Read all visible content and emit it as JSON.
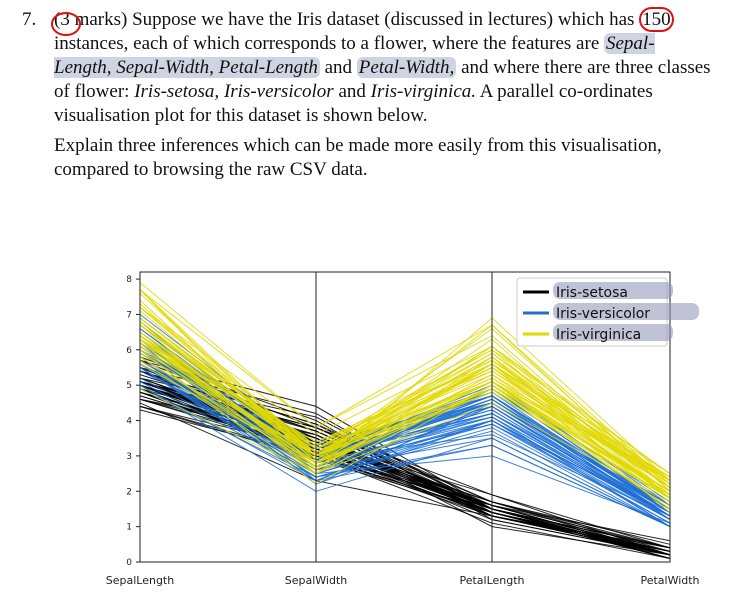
{
  "question": {
    "number": "7.",
    "marks": "(3 marks)",
    "text_a": " Suppose we have the Iris dataset (discussed in lectures) which has ",
    "count": "150",
    "text_b": " instances, each of which corresponds to a flower, where the features are ",
    "f1": "Sepal-Length, Sepal-Width, Petal-Length",
    "and1": " and ",
    "f2": "Petal-Width,",
    "text_c": " and where there are three classes of flower: ",
    "c1": "Iris-setosa,",
    "sp1": " ",
    "c2": "Iris-versicolor",
    "and2": " and ",
    "c3": "Iris-virginica.",
    "text_d": " A parallel co-ordinates visualisation plot for this dataset is shown below.",
    "instruction": "Explain three inferences which can be made more easily from this visualisation, compared to browsing the raw CSV data."
  },
  "colors": {
    "setosa": "#000000",
    "versicolor": "#1f6fd6",
    "virginica": "#e0d800",
    "highlight": "#8a91b3",
    "annotation": "#dd1111"
  },
  "chart_data": {
    "type": "parallel_coordinates",
    "axes": [
      "SepalLength",
      "SepalWidth",
      "PetalLength",
      "PetalWidth"
    ],
    "ylim": [
      0,
      8.2
    ],
    "yticks": [
      0,
      1,
      2,
      3,
      4,
      5,
      6,
      7,
      8
    ],
    "grid": false,
    "legend_position": "top-right",
    "series": [
      {
        "name": "Iris-setosa",
        "color": "#000000",
        "rows": [
          [
            5.1,
            3.5,
            1.4,
            0.2
          ],
          [
            4.9,
            3.0,
            1.4,
            0.2
          ],
          [
            4.7,
            3.2,
            1.3,
            0.2
          ],
          [
            4.6,
            3.1,
            1.5,
            0.2
          ],
          [
            5.0,
            3.6,
            1.4,
            0.2
          ],
          [
            5.4,
            3.9,
            1.7,
            0.4
          ],
          [
            4.6,
            3.4,
            1.4,
            0.3
          ],
          [
            5.0,
            3.4,
            1.5,
            0.2
          ],
          [
            4.4,
            2.9,
            1.4,
            0.2
          ],
          [
            4.9,
            3.1,
            1.5,
            0.1
          ],
          [
            5.4,
            3.7,
            1.5,
            0.2
          ],
          [
            4.8,
            3.4,
            1.6,
            0.2
          ],
          [
            4.8,
            3.0,
            1.4,
            0.1
          ],
          [
            4.3,
            3.0,
            1.1,
            0.1
          ],
          [
            5.8,
            4.0,
            1.2,
            0.2
          ],
          [
            5.7,
            4.4,
            1.5,
            0.4
          ],
          [
            5.4,
            3.9,
            1.3,
            0.4
          ],
          [
            5.1,
            3.5,
            1.4,
            0.3
          ],
          [
            5.7,
            3.8,
            1.7,
            0.3
          ],
          [
            5.1,
            3.8,
            1.5,
            0.3
          ],
          [
            5.4,
            3.4,
            1.7,
            0.2
          ],
          [
            5.1,
            3.7,
            1.5,
            0.4
          ],
          [
            4.6,
            3.6,
            1.0,
            0.2
          ],
          [
            5.1,
            3.3,
            1.7,
            0.5
          ],
          [
            4.8,
            3.4,
            1.9,
            0.2
          ],
          [
            5.0,
            3.0,
            1.6,
            0.2
          ],
          [
            5.0,
            3.4,
            1.6,
            0.4
          ],
          [
            5.2,
            3.5,
            1.5,
            0.2
          ],
          [
            5.2,
            3.4,
            1.4,
            0.2
          ],
          [
            4.7,
            3.2,
            1.6,
            0.2
          ],
          [
            4.8,
            3.1,
            1.6,
            0.2
          ],
          [
            5.4,
            3.4,
            1.5,
            0.4
          ],
          [
            5.2,
            4.1,
            1.5,
            0.1
          ],
          [
            5.5,
            4.2,
            1.4,
            0.2
          ],
          [
            4.9,
            3.1,
            1.5,
            0.2
          ],
          [
            5.0,
            3.2,
            1.2,
            0.2
          ],
          [
            5.5,
            3.5,
            1.3,
            0.2
          ],
          [
            4.9,
            3.6,
            1.4,
            0.1
          ],
          [
            4.4,
            3.0,
            1.3,
            0.2
          ],
          [
            5.1,
            3.4,
            1.5,
            0.2
          ],
          [
            5.0,
            3.5,
            1.3,
            0.3
          ],
          [
            4.5,
            2.3,
            1.3,
            0.3
          ],
          [
            4.4,
            3.2,
            1.3,
            0.2
          ],
          [
            5.0,
            3.5,
            1.6,
            0.6
          ],
          [
            5.1,
            3.8,
            1.9,
            0.4
          ],
          [
            4.8,
            3.0,
            1.4,
            0.3
          ],
          [
            5.1,
            3.8,
            1.6,
            0.2
          ],
          [
            4.6,
            3.2,
            1.4,
            0.2
          ],
          [
            5.3,
            3.7,
            1.5,
            0.2
          ],
          [
            5.0,
            3.3,
            1.4,
            0.2
          ]
        ]
      },
      {
        "name": "Iris-versicolor",
        "color": "#1f6fd6",
        "rows": [
          [
            7.0,
            3.2,
            4.7,
            1.4
          ],
          [
            6.4,
            3.2,
            4.5,
            1.5
          ],
          [
            6.9,
            3.1,
            4.9,
            1.5
          ],
          [
            5.5,
            2.3,
            4.0,
            1.3
          ],
          [
            6.5,
            2.8,
            4.6,
            1.5
          ],
          [
            5.7,
            2.8,
            4.5,
            1.3
          ],
          [
            6.3,
            3.3,
            4.7,
            1.6
          ],
          [
            4.9,
            2.4,
            3.3,
            1.0
          ],
          [
            6.6,
            2.9,
            4.6,
            1.3
          ],
          [
            5.2,
            2.7,
            3.9,
            1.4
          ],
          [
            5.0,
            2.0,
            3.5,
            1.0
          ],
          [
            5.9,
            3.0,
            4.2,
            1.5
          ],
          [
            6.0,
            2.2,
            4.0,
            1.0
          ],
          [
            6.1,
            2.9,
            4.7,
            1.4
          ],
          [
            5.6,
            2.9,
            3.6,
            1.3
          ],
          [
            6.7,
            3.1,
            4.4,
            1.4
          ],
          [
            5.6,
            3.0,
            4.5,
            1.5
          ],
          [
            5.8,
            2.7,
            4.1,
            1.0
          ],
          [
            6.2,
            2.2,
            4.5,
            1.5
          ],
          [
            5.6,
            2.5,
            3.9,
            1.1
          ],
          [
            5.9,
            3.2,
            4.8,
            1.8
          ],
          [
            6.1,
            2.8,
            4.0,
            1.3
          ],
          [
            6.3,
            2.5,
            4.9,
            1.5
          ],
          [
            6.1,
            2.8,
            4.7,
            1.2
          ],
          [
            6.4,
            2.9,
            4.3,
            1.3
          ],
          [
            6.6,
            3.0,
            4.4,
            1.4
          ],
          [
            6.8,
            2.8,
            4.8,
            1.4
          ],
          [
            6.7,
            3.0,
            5.0,
            1.7
          ],
          [
            6.0,
            2.9,
            4.5,
            1.5
          ],
          [
            5.7,
            2.6,
            3.5,
            1.0
          ],
          [
            5.5,
            2.4,
            3.8,
            1.1
          ],
          [
            5.5,
            2.4,
            3.7,
            1.0
          ],
          [
            5.8,
            2.7,
            3.9,
            1.2
          ],
          [
            6.0,
            2.7,
            5.1,
            1.6
          ],
          [
            5.4,
            3.0,
            4.5,
            1.5
          ],
          [
            6.0,
            3.4,
            4.5,
            1.6
          ],
          [
            6.7,
            3.1,
            4.7,
            1.5
          ],
          [
            6.3,
            2.3,
            4.4,
            1.3
          ],
          [
            5.6,
            3.0,
            4.1,
            1.3
          ],
          [
            5.5,
            2.5,
            4.0,
            1.3
          ],
          [
            5.5,
            2.6,
            4.4,
            1.2
          ],
          [
            6.1,
            3.0,
            4.6,
            1.4
          ],
          [
            5.8,
            2.6,
            4.0,
            1.2
          ],
          [
            5.0,
            2.3,
            3.3,
            1.0
          ],
          [
            5.6,
            2.7,
            4.2,
            1.3
          ],
          [
            5.7,
            3.0,
            4.2,
            1.2
          ],
          [
            5.7,
            2.9,
            4.2,
            1.3
          ],
          [
            6.2,
            2.9,
            4.3,
            1.3
          ],
          [
            5.1,
            2.5,
            3.0,
            1.1
          ],
          [
            5.7,
            2.8,
            4.1,
            1.3
          ]
        ]
      },
      {
        "name": "Iris-virginica",
        "color": "#e0d800",
        "rows": [
          [
            6.3,
            3.3,
            6.0,
            2.5
          ],
          [
            5.8,
            2.7,
            5.1,
            1.9
          ],
          [
            7.1,
            3.0,
            5.9,
            2.1
          ],
          [
            6.3,
            2.9,
            5.6,
            1.8
          ],
          [
            6.5,
            3.0,
            5.8,
            2.2
          ],
          [
            7.6,
            3.0,
            6.6,
            2.1
          ],
          [
            4.9,
            2.5,
            4.5,
            1.7
          ],
          [
            7.3,
            2.9,
            6.3,
            1.8
          ],
          [
            6.7,
            2.5,
            5.8,
            1.8
          ],
          [
            7.2,
            3.6,
            6.1,
            2.5
          ],
          [
            6.5,
            3.2,
            5.1,
            2.0
          ],
          [
            6.4,
            2.7,
            5.3,
            1.9
          ],
          [
            6.8,
            3.0,
            5.5,
            2.1
          ],
          [
            5.7,
            2.5,
            5.0,
            2.0
          ],
          [
            5.8,
            2.8,
            5.1,
            2.4
          ],
          [
            6.4,
            3.2,
            5.3,
            2.3
          ],
          [
            6.5,
            3.0,
            5.5,
            1.8
          ],
          [
            7.7,
            3.8,
            6.7,
            2.2
          ],
          [
            7.7,
            2.6,
            6.9,
            2.3
          ],
          [
            6.0,
            2.2,
            5.0,
            1.5
          ],
          [
            6.9,
            3.2,
            5.7,
            2.3
          ],
          [
            5.6,
            2.8,
            4.9,
            2.0
          ],
          [
            7.7,
            2.8,
            6.7,
            2.0
          ],
          [
            6.3,
            2.7,
            4.9,
            1.8
          ],
          [
            6.7,
            3.3,
            5.7,
            2.1
          ],
          [
            7.2,
            3.2,
            6.0,
            1.8
          ],
          [
            6.2,
            2.8,
            4.8,
            1.8
          ],
          [
            6.1,
            3.0,
            4.9,
            1.8
          ],
          [
            6.4,
            2.8,
            5.6,
            2.1
          ],
          [
            7.2,
            3.0,
            5.8,
            1.6
          ],
          [
            7.4,
            2.8,
            6.1,
            1.9
          ],
          [
            7.9,
            3.8,
            6.4,
            2.0
          ],
          [
            6.4,
            2.8,
            5.6,
            2.2
          ],
          [
            6.3,
            2.8,
            5.1,
            1.5
          ],
          [
            6.1,
            2.6,
            5.6,
            1.4
          ],
          [
            7.7,
            3.0,
            6.1,
            2.3
          ],
          [
            6.3,
            3.4,
            5.6,
            2.4
          ],
          [
            6.4,
            3.1,
            5.5,
            1.8
          ],
          [
            6.0,
            3.0,
            4.8,
            1.8
          ],
          [
            6.9,
            3.1,
            5.4,
            2.1
          ],
          [
            6.7,
            3.1,
            5.6,
            2.4
          ],
          [
            6.9,
            3.1,
            5.1,
            2.3
          ],
          [
            5.8,
            2.7,
            5.1,
            1.9
          ],
          [
            6.8,
            3.2,
            5.9,
            2.3
          ],
          [
            6.7,
            3.3,
            5.7,
            2.5
          ],
          [
            6.7,
            3.0,
            5.2,
            2.3
          ],
          [
            6.3,
            2.5,
            5.0,
            1.9
          ],
          [
            6.5,
            3.0,
            5.2,
            2.0
          ],
          [
            6.2,
            3.4,
            5.4,
            2.3
          ],
          [
            5.9,
            3.0,
            5.1,
            1.8
          ]
        ]
      }
    ]
  }
}
